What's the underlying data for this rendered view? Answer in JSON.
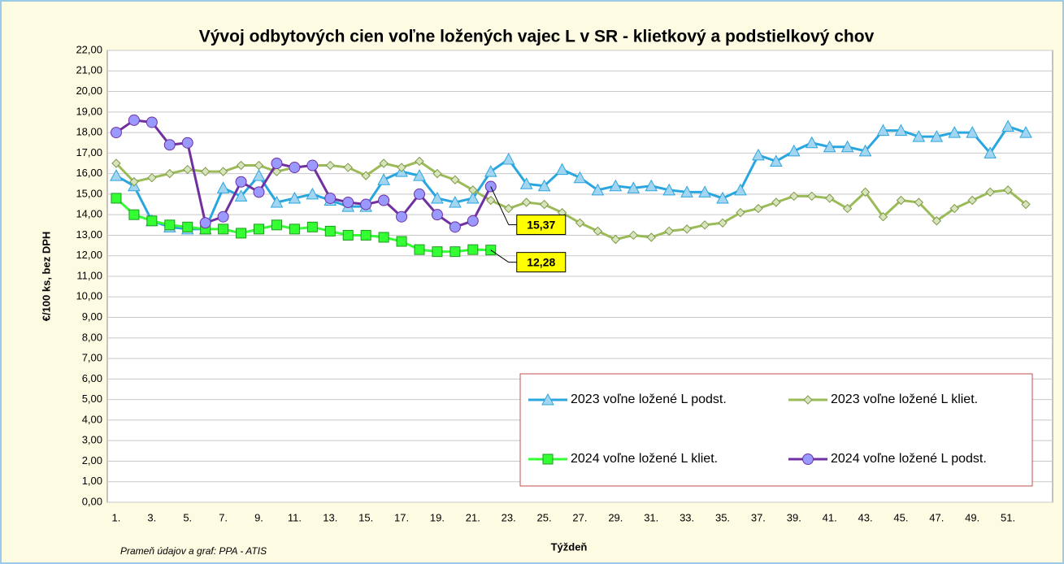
{
  "chart_data": {
    "type": "line",
    "title": "Vývoj odbytových cien voľne ložených vajec L v SR - klietkový a podstielkový chov",
    "y_label": "€/100 ks, bez DPH",
    "x_label": "Týždeň",
    "source": "Prameň údajov a graf: PPA - ATIS",
    "categories": [
      "1.",
      null,
      "3.",
      null,
      "5.",
      null,
      "7.",
      null,
      "9.",
      null,
      "11.",
      null,
      "13.",
      null,
      "15.",
      null,
      "17.",
      null,
      "19.",
      null,
      "21.",
      null,
      "23.",
      null,
      "25.",
      null,
      "27.",
      null,
      "29.",
      null,
      "31.",
      null,
      "33.",
      null,
      "35.",
      null,
      "37.",
      null,
      "39.",
      null,
      "41.",
      null,
      "43.",
      null,
      "45.",
      null,
      "47.",
      null,
      "49.",
      null,
      "51.",
      null
    ],
    "ylim": [
      0,
      22
    ],
    "yticks": [
      {
        "value": 0,
        "label": "0,00"
      },
      {
        "value": 1,
        "label": "1,00"
      },
      {
        "value": 2,
        "label": "2,00"
      },
      {
        "value": 3,
        "label": "3,00"
      },
      {
        "value": 4,
        "label": "4,00"
      },
      {
        "value": 5,
        "label": "5,00"
      },
      {
        "value": 6,
        "label": "6,00"
      },
      {
        "value": 7,
        "label": "7,00"
      },
      {
        "value": 8,
        "label": "8,00"
      },
      {
        "value": 9,
        "label": "9,00"
      },
      {
        "value": 10,
        "label": "10,00"
      },
      {
        "value": 11,
        "label": "11,00"
      },
      {
        "value": 12,
        "label": "12,00"
      },
      {
        "value": 13,
        "label": "13,00"
      },
      {
        "value": 14,
        "label": "14,00"
      },
      {
        "value": 15,
        "label": "15,00"
      },
      {
        "value": 16,
        "label": "16,00"
      },
      {
        "value": 17,
        "label": "17,00"
      },
      {
        "value": 18,
        "label": "18,00"
      },
      {
        "value": 19,
        "label": "19,00"
      },
      {
        "value": 20,
        "label": "20,00"
      },
      {
        "value": 21,
        "label": "21,00"
      },
      {
        "value": 22,
        "label": "22,00"
      }
    ],
    "grid": true,
    "series": [
      {
        "name": "2023 voľne ložené L podst.",
        "color": "#2aa6df",
        "marker": "triangle",
        "marker_color": "#a3d5f0",
        "values": [
          15.9,
          15.4,
          13.7,
          13.4,
          13.3,
          13.3,
          15.3,
          14.9,
          15.9,
          14.6,
          14.8,
          15.0,
          14.7,
          14.4,
          14.4,
          15.7,
          16.1,
          15.9,
          14.8,
          14.6,
          14.8,
          16.1,
          16.7,
          15.5,
          15.4,
          16.2,
          15.8,
          15.2,
          15.4,
          15.3,
          15.4,
          15.2,
          15.1,
          15.1,
          14.8,
          15.2,
          16.9,
          16.6,
          17.1,
          17.5,
          17.3,
          17.3,
          17.1,
          18.1,
          18.1,
          17.8,
          17.8,
          18.0,
          18.0,
          17.0,
          18.3,
          18.0
        ]
      },
      {
        "name": "2023 voľne ložené L kliet.",
        "color": "#9bbb59",
        "marker": "diamond",
        "marker_color": "#d7e4bd",
        "values": [
          16.5,
          15.6,
          15.8,
          16.0,
          16.2,
          16.1,
          16.1,
          16.4,
          16.4,
          16.1,
          16.3,
          16.4,
          16.4,
          16.3,
          15.9,
          16.5,
          16.3,
          16.6,
          16.0,
          15.7,
          15.2,
          14.7,
          14.3,
          14.6,
          14.5,
          14.1,
          13.6,
          13.2,
          12.8,
          13.0,
          12.9,
          13.2,
          13.3,
          13.5,
          13.6,
          14.1,
          14.3,
          14.6,
          14.9,
          14.9,
          14.8,
          14.3,
          15.1,
          13.9,
          14.7,
          14.6,
          13.7,
          14.3,
          14.7,
          15.1,
          15.2,
          14.5
        ]
      },
      {
        "name": "2024 voľne ložené L kliet.",
        "color": "#33ff33",
        "marker": "square",
        "marker_color": "#33ff33",
        "values": [
          14.8,
          14.0,
          13.7,
          13.5,
          13.4,
          13.3,
          13.3,
          13.1,
          13.3,
          13.5,
          13.3,
          13.4,
          13.2,
          13.0,
          13.0,
          12.9,
          12.7,
          12.3,
          12.2,
          12.2,
          12.3,
          12.28,
          null,
          null,
          null,
          null,
          null,
          null,
          null,
          null,
          null,
          null,
          null,
          null,
          null,
          null,
          null,
          null,
          null,
          null,
          null,
          null,
          null,
          null,
          null,
          null,
          null,
          null,
          null,
          null,
          null,
          null
        ],
        "value_labels": [
          null,
          null,
          null,
          null,
          null,
          null,
          null,
          null,
          null,
          null,
          null,
          null,
          null,
          null,
          null,
          null,
          null,
          null,
          null,
          null,
          null,
          "12,28",
          null,
          null,
          null,
          null,
          null,
          null,
          null,
          null,
          null,
          null,
          null,
          null,
          null,
          null,
          null,
          null,
          null,
          null,
          null,
          null,
          null,
          null,
          null,
          null,
          null,
          null,
          null,
          null,
          null,
          null
        ]
      },
      {
        "name": "2024 voľne ložené L podst.",
        "color": "#7030a0",
        "marker": "circle",
        "marker_color": "#9999ff",
        "values": [
          18.0,
          18.6,
          18.5,
          17.4,
          17.5,
          13.6,
          13.9,
          15.6,
          15.1,
          16.5,
          16.3,
          16.4,
          14.8,
          14.6,
          14.5,
          14.7,
          13.9,
          15.0,
          14.0,
          13.4,
          13.7,
          15.37,
          null,
          null,
          null,
          null,
          null,
          null,
          null,
          null,
          null,
          null,
          null,
          null,
          null,
          null,
          null,
          null,
          null,
          null,
          null,
          null,
          null,
          null,
          null,
          null,
          null,
          null,
          null,
          null,
          null,
          null
        ],
        "value_labels": [
          null,
          null,
          null,
          null,
          null,
          null,
          null,
          null,
          null,
          null,
          null,
          null,
          null,
          null,
          null,
          null,
          null,
          null,
          null,
          null,
          null,
          "15,37",
          null,
          null,
          null,
          null,
          null,
          null,
          null,
          null,
          null,
          null,
          null,
          null,
          null,
          null,
          null,
          null,
          null,
          null,
          null,
          null,
          null,
          null,
          null,
          null,
          null,
          null,
          null,
          null,
          null,
          null
        ]
      }
    ]
  }
}
